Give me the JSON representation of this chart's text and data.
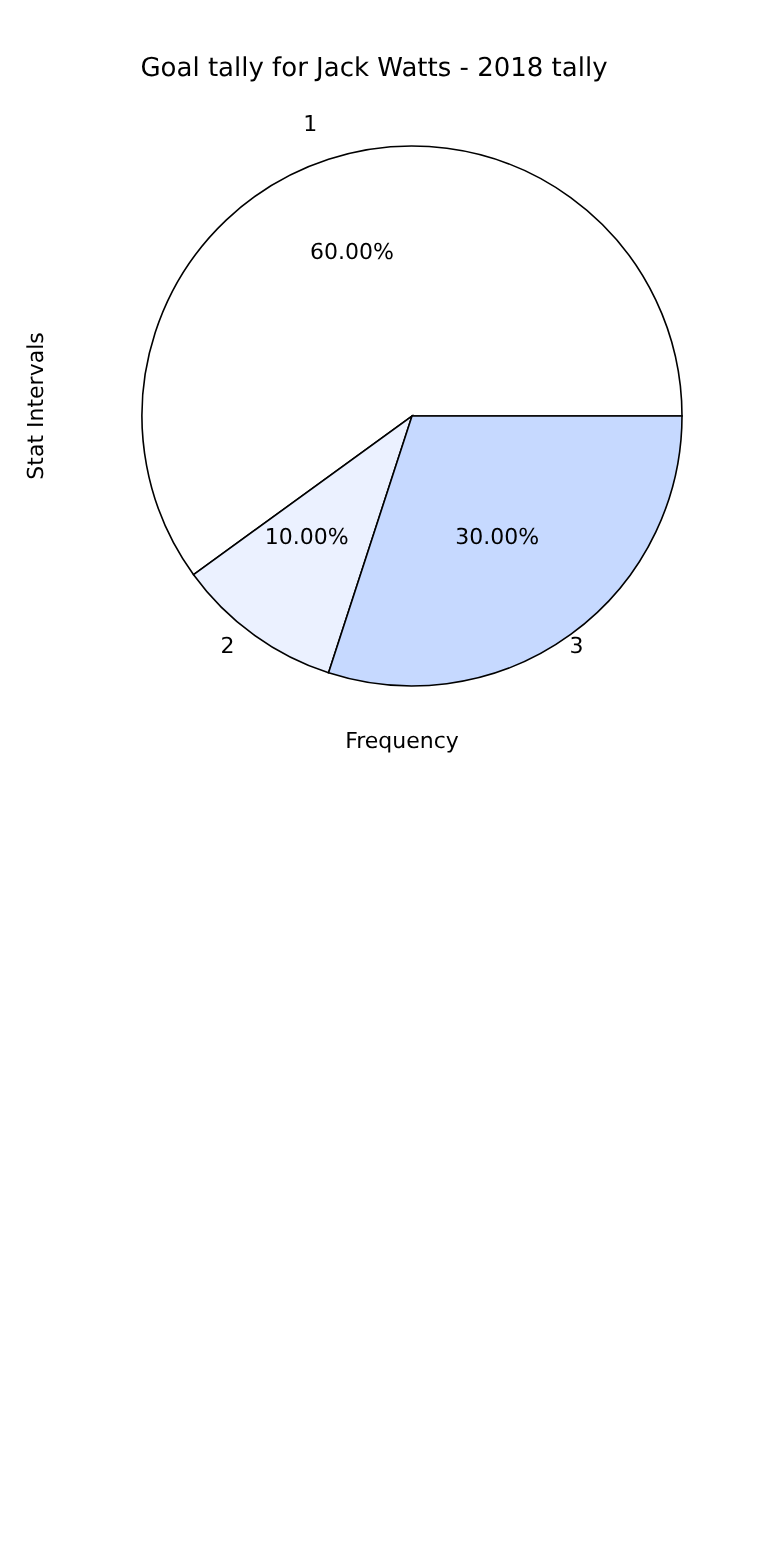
{
  "chart_data": {
    "type": "pie",
    "title": "Goal tally for Jack Watts - 2018 tally",
    "xlabel": "Frequency",
    "ylabel": "Stat Intervals",
    "categories": [
      "1",
      "2",
      "3"
    ],
    "values": [
      60,
      10,
      30
    ],
    "colors": [
      "#ffffff",
      "#ebf1ff",
      "#c6d9ff"
    ],
    "value_labels": [
      "60.00%",
      "10.00%",
      "30.00%"
    ]
  }
}
